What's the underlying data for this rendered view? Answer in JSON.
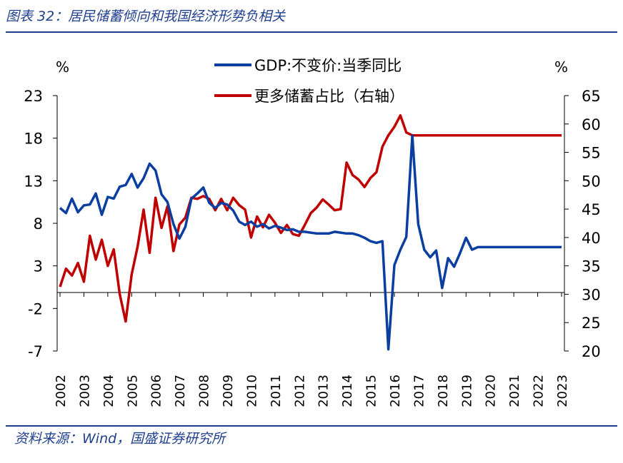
{
  "figure": {
    "title": "图表 32：居民储蓄倾向和我国经济形势负相关",
    "source": "资料来源：Wind，国盛证券研究所"
  },
  "colors": {
    "gdp": "#0a3ea0",
    "savings": "#c00000",
    "accent": "#1f3f8f"
  },
  "chart_data": {
    "type": "line",
    "left_unit": "%",
    "right_unit": "%",
    "grid": false,
    "legend_position": "top-center",
    "y_left": {
      "ticks": [
        "23",
        "18",
        "13",
        "8",
        "3",
        "-2",
        "-7"
      ],
      "range": [
        -7,
        23
      ]
    },
    "y_right": {
      "ticks": [
        "65",
        "60",
        "55",
        "50",
        "45",
        "40",
        "35",
        "30",
        "25",
        "20"
      ],
      "range": [
        20,
        65
      ]
    },
    "x_ticks": [
      "2002",
      "2003",
      "2004",
      "2005",
      "2006",
      "2007",
      "2008",
      "2009",
      "2010",
      "2011",
      "2012",
      "2013",
      "2014",
      "2015",
      "2016",
      "2017",
      "2018",
      "2019",
      "2020",
      "2021",
      "2022",
      "2023"
    ],
    "series": [
      {
        "name": "GDP:不变价:当季同比",
        "axis": "left",
        "x": [
          2002.0,
          2002.25,
          2002.5,
          2002.75,
          2003.0,
          2003.25,
          2003.5,
          2003.75,
          2004.0,
          2004.25,
          2004.5,
          2004.75,
          2005.0,
          2005.25,
          2005.5,
          2005.75,
          2006.0,
          2006.25,
          2006.5,
          2006.75,
          2007.0,
          2007.25,
          2007.5,
          2007.75,
          2008.0,
          2008.25,
          2008.5,
          2008.75,
          2009.0,
          2009.25,
          2009.5,
          2009.75,
          2010.0,
          2010.25,
          2010.5,
          2010.75,
          2011.0,
          2011.25,
          2011.5,
          2011.75,
          2012.0,
          2012.25,
          2012.5,
          2012.75,
          2013.0,
          2013.25,
          2013.5,
          2013.75,
          2014.0,
          2014.25,
          2014.5,
          2014.75,
          2015.0,
          2015.25,
          2015.5,
          2015.75,
          2016.0,
          2016.25,
          2016.5,
          2016.75,
          2017.0,
          2017.25,
          2017.5,
          2017.75,
          2018.0,
          2018.25,
          2018.5,
          2018.75,
          2019.0,
          2019.25,
          2019.5,
          2019.75,
          2020.0,
          2020.25,
          2020.5,
          2020.75,
          2021.0,
          2021.25,
          2021.5,
          2021.75,
          2022.0,
          2022.25,
          2022.5,
          2022.75,
          2023.0
        ],
        "values": [
          9.8,
          9.2,
          10.9,
          9.3,
          10.1,
          10.2,
          11.5,
          9.0,
          11.1,
          10.9,
          12.3,
          12.5,
          13.8,
          12.2,
          13.3,
          15.0,
          14.2,
          11.4,
          10.5,
          7.9,
          6.2,
          7.6,
          10.9,
          11.5,
          12.2,
          10.4,
          9.8,
          10.4,
          10.2,
          9.5,
          8.2,
          7.8,
          8.2,
          7.6,
          7.9,
          7.4,
          7.7,
          7.5,
          7.2,
          7.3,
          7.0,
          7.0,
          6.9,
          6.8,
          6.8,
          6.8,
          7.0,
          6.9,
          6.8,
          6.8,
          6.6,
          6.3,
          5.9,
          5.7,
          5.9,
          -6.8,
          3.1,
          4.9,
          6.4,
          18.3,
          7.9,
          4.9,
          4.0,
          4.8,
          0.4,
          3.9,
          2.9,
          4.5,
          6.3,
          4.9,
          5.2,
          5.2,
          5.2,
          5.2,
          5.2,
          5.2,
          5.2,
          5.2,
          5.2,
          5.2,
          5.2,
          5.2,
          5.2,
          5.2,
          5.2
        ]
      },
      {
        "name": "更多储蓄占比（右轴）",
        "axis": "right",
        "x": [
          2002.0,
          2002.25,
          2002.5,
          2002.75,
          2003.0,
          2003.25,
          2003.5,
          2003.75,
          2004.0,
          2004.25,
          2004.5,
          2004.75,
          2005.0,
          2005.25,
          2005.5,
          2005.75,
          2006.0,
          2006.25,
          2006.5,
          2006.75,
          2007.0,
          2007.25,
          2007.5,
          2007.75,
          2008.0,
          2008.25,
          2008.5,
          2008.75,
          2009.0,
          2009.25,
          2009.5,
          2009.75,
          2010.0,
          2010.25,
          2010.5,
          2010.75,
          2011.0,
          2011.25,
          2011.5,
          2011.75,
          2012.0,
          2012.25,
          2012.5,
          2012.75,
          2013.0,
          2013.25,
          2013.5,
          2013.75,
          2014.0,
          2014.25,
          2014.5,
          2014.75,
          2015.0,
          2015.25,
          2015.5,
          2015.75,
          2016.0,
          2016.25,
          2016.5,
          2016.75,
          2017.0,
          2017.25,
          2017.5,
          2017.75,
          2018.0,
          2018.25,
          2018.5,
          2018.75,
          2019.0,
          2019.25,
          2019.5,
          2019.75,
          2020.0,
          2020.25,
          2020.5,
          2020.75,
          2021.0,
          2021.25,
          2021.5,
          2021.75,
          2022.0,
          2022.25,
          2022.5,
          2022.75,
          2023.0
        ],
        "values": [
          31.3,
          34.5,
          33.3,
          35.5,
          32.2,
          40.3,
          36.1,
          39.6,
          35.0,
          37.9,
          30.0,
          25.2,
          33.5,
          38.4,
          44.9,
          37.3,
          47.0,
          41.7,
          45.5,
          37.6,
          42.3,
          43.5,
          47.0,
          46.8,
          47.3,
          46.8,
          44.8,
          46.8,
          44.8,
          47.0,
          45.7,
          44.9,
          40.0,
          43.7,
          41.8,
          44.0,
          42.6,
          40.8,
          42.2,
          40.6,
          40.3,
          42.2,
          44.3,
          45.3,
          46.7,
          45.8,
          44.8,
          45.0,
          53.2,
          51.0,
          50.2,
          48.9,
          50.5,
          51.5,
          56.0,
          58.0,
          59.5,
          61.5,
          58.5,
          58.0,
          58.0,
          58.0,
          58.0,
          58.0,
          58.0,
          58.0,
          58.0,
          58.0,
          58.0,
          58.0,
          58.0,
          58.0,
          58.0,
          58.0,
          58.0,
          58.0,
          58.0,
          58.0,
          58.0,
          58.0,
          58.0,
          58.0,
          58.0,
          58.0,
          58.0
        ]
      }
    ]
  }
}
